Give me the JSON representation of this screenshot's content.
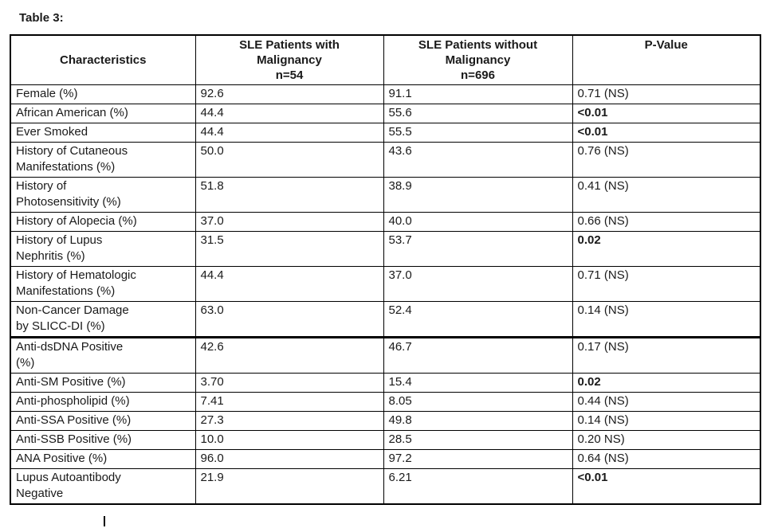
{
  "title": "Table 3:",
  "table": {
    "headers": [
      {
        "label": "Characteristics"
      },
      {
        "label": "SLE Patients with\nMalignancy\nn=54"
      },
      {
        "label": "SLE Patients without\nMalignancy\nn=696"
      },
      {
        "label": "P-Value"
      }
    ],
    "rows": [
      {
        "characteristic": "Female (%)",
        "with_malignancy": "92.6",
        "without_malignancy": "91.1",
        "p_value": "0.71 (NS)",
        "p_bold": false,
        "thick_bottom": false
      },
      {
        "characteristic": "African American (%)",
        "with_malignancy": "44.4",
        "without_malignancy": "55.6",
        "p_value": "<0.01",
        "p_bold": true,
        "thick_bottom": false
      },
      {
        "characteristic": "Ever Smoked",
        "with_malignancy": "44.4",
        "without_malignancy": "55.5",
        "p_value": "<0.01",
        "p_bold": true,
        "thick_bottom": false
      },
      {
        "characteristic": "History of Cutaneous\nManifestations (%)",
        "with_malignancy": "50.0",
        "without_malignancy": "43.6",
        "p_value": "0.76 (NS)",
        "p_bold": false,
        "thick_bottom": false
      },
      {
        "characteristic": "History of\nPhotosensitivity (%)",
        "with_malignancy": "51.8",
        "without_malignancy": "38.9",
        "p_value": "0.41 (NS)",
        "p_bold": false,
        "thick_bottom": false
      },
      {
        "characteristic": "History of Alopecia (%)",
        "with_malignancy": "37.0",
        "without_malignancy": "40.0",
        "p_value": "0.66 (NS)",
        "p_bold": false,
        "thick_bottom": false
      },
      {
        "characteristic": "History of Lupus\nNephritis (%)",
        "with_malignancy": "31.5",
        "without_malignancy": "53.7",
        "p_value": "0.02",
        "p_bold": true,
        "thick_bottom": false
      },
      {
        "characteristic": "History of Hematologic\nManifestations (%)",
        "with_malignancy": "44.4",
        "without_malignancy": "37.0",
        "p_value": "0.71 (NS)",
        "p_bold": false,
        "thick_bottom": false
      },
      {
        "characteristic": "Non-Cancer Damage\nby SLICC-DI (%)",
        "with_malignancy": "63.0",
        "without_malignancy": "52.4",
        "p_value": "0.14 (NS)",
        "p_bold": false,
        "thick_bottom": true
      },
      {
        "characteristic": "Anti-dsDNA Positive\n(%)",
        "with_malignancy": "42.6",
        "without_malignancy": "46.7",
        "p_value": "0.17 (NS)",
        "p_bold": false,
        "thick_bottom": false
      },
      {
        "characteristic": "Anti-SM Positive (%)",
        "with_malignancy": "3.70",
        "without_malignancy": "15.4",
        "p_value": "0.02",
        "p_bold": true,
        "thick_bottom": false
      },
      {
        "characteristic": "Anti-phospholipid (%)",
        "with_malignancy": "7.41",
        "without_malignancy": "8.05",
        "p_value": "0.44 (NS)",
        "p_bold": false,
        "thick_bottom": false
      },
      {
        "characteristic": "Anti-SSA Positive (%)",
        "with_malignancy": "27.3",
        "without_malignancy": "49.8",
        "p_value": "0.14 (NS)",
        "p_bold": false,
        "thick_bottom": false
      },
      {
        "characteristic": "Anti-SSB Positive (%)",
        "with_malignancy": "10.0",
        "without_malignancy": "28.5",
        "p_value": "0.20 NS)",
        "p_bold": false,
        "thick_bottom": false
      },
      {
        "characteristic": "ANA Positive (%)",
        "with_malignancy": "96.0",
        "without_malignancy": "97.2",
        "p_value": "0.64 (NS)",
        "p_bold": false,
        "thick_bottom": false
      },
      {
        "characteristic": "Lupus Autoantibody\nNegative",
        "with_malignancy": "21.9",
        "without_malignancy": "6.21",
        "p_value": "<0.01",
        "p_bold": true,
        "thick_bottom": false
      }
    ]
  }
}
